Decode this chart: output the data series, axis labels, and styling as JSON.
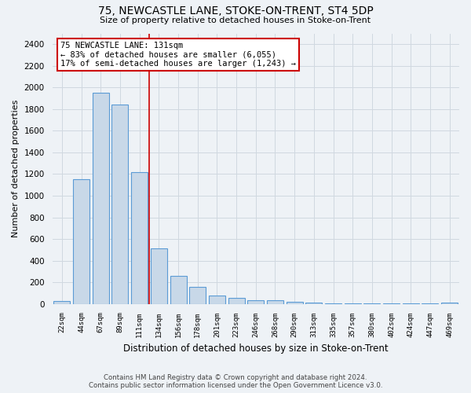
{
  "title1": "75, NEWCASTLE LANE, STOKE-ON-TRENT, ST4 5DP",
  "title2": "Size of property relative to detached houses in Stoke-on-Trent",
  "xlabel": "Distribution of detached houses by size in Stoke-on-Trent",
  "ylabel": "Number of detached properties",
  "categories": [
    "22sqm",
    "44sqm",
    "67sqm",
    "89sqm",
    "111sqm",
    "134sqm",
    "156sqm",
    "178sqm",
    "201sqm",
    "223sqm",
    "246sqm",
    "268sqm",
    "290sqm",
    "313sqm",
    "335sqm",
    "357sqm",
    "380sqm",
    "402sqm",
    "424sqm",
    "447sqm",
    "469sqm"
  ],
  "values": [
    25,
    1150,
    1950,
    1840,
    1220,
    510,
    260,
    155,
    80,
    55,
    35,
    35,
    20,
    10,
    8,
    5,
    3,
    2,
    2,
    2,
    15
  ],
  "bar_color": "#c8d8e8",
  "bar_edge_color": "#5b9bd5",
  "vline_color": "#cc0000",
  "annotation_line1": "75 NEWCASTLE LANE: 131sqm",
  "annotation_line2": "← 83% of detached houses are smaller (6,055)",
  "annotation_line3": "17% of semi-detached houses are larger (1,243) →",
  "annotation_box_color": "white",
  "annotation_box_edge_color": "#cc0000",
  "ylim": [
    0,
    2500
  ],
  "yticks": [
    0,
    200,
    400,
    600,
    800,
    1000,
    1200,
    1400,
    1600,
    1800,
    2000,
    2200,
    2400
  ],
  "grid_color": "#d0d8e0",
  "background_color": "#eef2f6",
  "footer1": "Contains HM Land Registry data © Crown copyright and database right 2024.",
  "footer2": "Contains public sector information licensed under the Open Government Licence v3.0."
}
